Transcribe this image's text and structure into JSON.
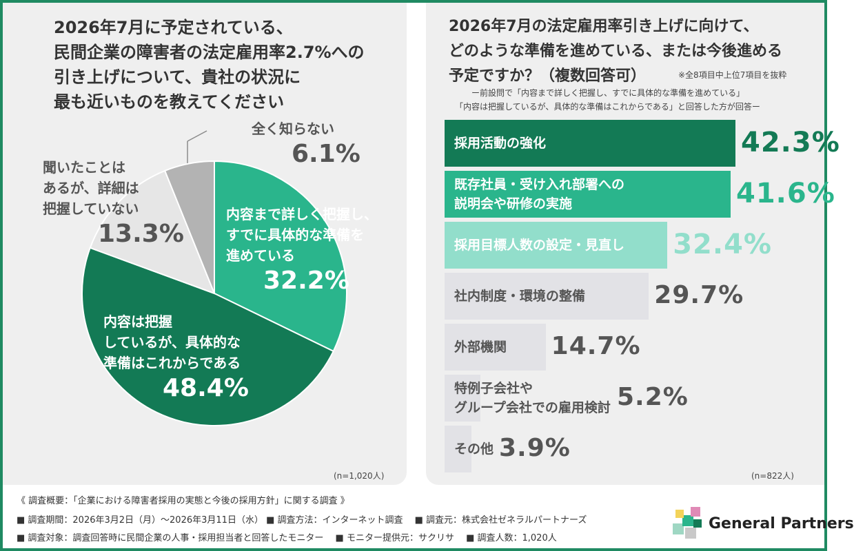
{
  "colors": {
    "border": "#1f8a62",
    "dark_green": "#137a55",
    "mid_green": "#2ab58c",
    "light_green": "#92decb",
    "pie_light_gray": "#e6e6e6",
    "pie_gray": "#b3b3b3",
    "bar_gray": "#e2e2e6"
  },
  "left": {
    "title_lines": [
      "2026年7月に予定されている、",
      "民間企業の障害者の法定雇用率2.7%への",
      "引き上げについて、貴社の状況に",
      "最も近いものを教えてください"
    ],
    "n_label": "(n=1,020人)"
  },
  "right": {
    "title_lines": [
      "2026年7月の法定雇用率引き上げに向けて、",
      "どのような準備を進めている、または今後進める",
      "予定ですか？（複数回答可）"
    ],
    "note": "※全8項目中上位7項目を抜粋",
    "subtitle_lines": [
      "ー前設問で「内容まで詳しく把握し、すでに具体的な準備を進めている」",
      "「内容は把握しているが、具体的な準備はこれからである」と回答した方が回答ー"
    ],
    "n_label": "(n=822人)"
  },
  "chart_data": [
    {
      "type": "pie",
      "slices": [
        {
          "label_lines": [
            "内容まで詳しく把握し、",
            "すでに具体的な準備を",
            "進めている"
          ],
          "pct_label": "32.2%",
          "value": 32.2,
          "color": "#2ab58c"
        },
        {
          "label_lines": [
            "内容は把握",
            "しているが、具体的な",
            "準備はこれからである"
          ],
          "pct_label": "48.4%",
          "value": 48.4,
          "color": "#137a55"
        },
        {
          "label_lines": [
            "聞いたことは",
            "あるが、詳細は",
            "把握していない"
          ],
          "pct_label": "13.3%",
          "value": 13.3,
          "color": "#e6e6e6"
        },
        {
          "label_lines": [
            "全く知らない"
          ],
          "pct_label": "6.1%",
          "value": 6.1,
          "color": "#b3b3b3"
        }
      ],
      "start": "12 o'clock",
      "direction": "clockwise"
    },
    {
      "type": "bar",
      "orientation": "horizontal",
      "xlim": [
        0,
        42.3
      ],
      "bars": [
        {
          "label_lines": [
            "採用活動の強化"
          ],
          "value": 42.3,
          "value_label": "42.3%",
          "fill": "#137a55",
          "text_color": "#ffffff",
          "value_color": "#137a55"
        },
        {
          "label_lines": [
            "既存社員・受け入れ部署への",
            "説明会や研修の実施"
          ],
          "value": 41.6,
          "value_label": "41.6%",
          "fill": "#2ab58c",
          "text_color": "#ffffff",
          "value_color": "#2ab58c"
        },
        {
          "label_lines": [
            "採用目標人数の設定・見直し"
          ],
          "value": 32.4,
          "value_label": "32.4%",
          "fill": "#92decb",
          "text_color": "#ffffff",
          "value_color": "#92decb"
        },
        {
          "label_lines": [
            "社内制度・環境の整備"
          ],
          "value": 29.7,
          "value_label": "29.7%",
          "fill": "#e2e2e6",
          "text_color": "#555555",
          "value_color": "#555555"
        },
        {
          "label_lines": [
            "外部機関"
          ],
          "value": 14.7,
          "value_label": "14.7%",
          "fill": "#e2e2e6",
          "text_color": "#555555",
          "value_color": "#555555"
        },
        {
          "label_lines": [
            "特例子会社や",
            "グループ会社での雇用検討"
          ],
          "value": 5.2,
          "value_label": "5.2%",
          "fill": "#e2e2e6",
          "text_color": "#555555",
          "value_color": "#555555"
        },
        {
          "label_lines": [
            "その他"
          ],
          "value": 3.9,
          "value_label": "3.9%",
          "fill": "#e2e2e6",
          "text_color": "#555555",
          "value_color": "#555555"
        }
      ]
    }
  ],
  "footer": {
    "lines": [
      "《 調査概要：「企業における障害者採用の実態と今後の採用方針」に関する調査 》",
      "■ 調査期間：2026年3月2日（月）〜2026年3月11日（水） ■ 調査方法：インターネット調査 　■ 調査元：株式会社ゼネラルパートナーズ",
      "■ 調査対象：調査回答時に民間企業の人事・採用担当者と回答したモニター 　■ モニター提供元：サクリサ 　■ 調査人数：1,020人"
    ]
  },
  "logo": {
    "text": "General Partners",
    "icon": "cube-stack-logo-icon"
  }
}
